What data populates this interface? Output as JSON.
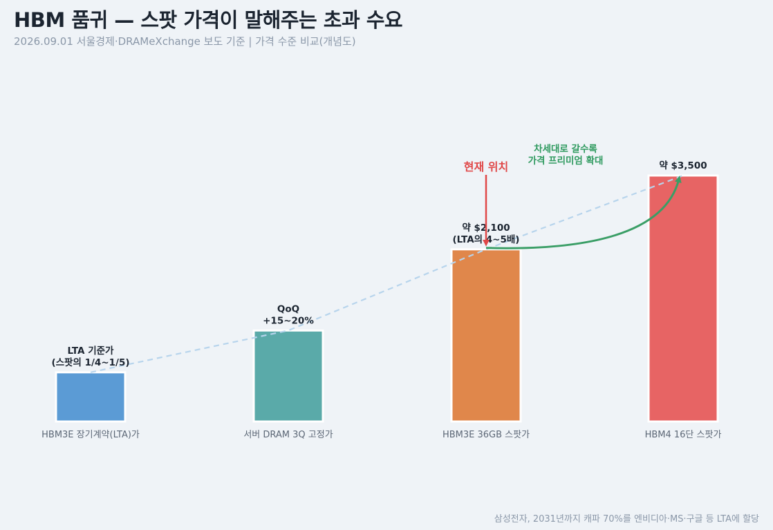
{
  "header": {
    "title": "HBM 품귀 — 스팟 가격이 말해주는 초과 수요",
    "subtitle": "2026.09.01 서울경제·DRAMeXchange 보도 기준  |  가격 수준 비교(개념도)"
  },
  "footnote": "삼성전자, 2031년까지 캐파 70%를 엔비디아·MS·구글 등 LTA에 할당",
  "chart_data": {
    "type": "bar",
    "categories": [
      "HBM3E 장기계약(LTA)가",
      "서버 DRAM 3Q 고정가",
      "HBM3E 36GB 스팟가",
      "HBM4 16단 스팟가"
    ],
    "values": [
      0.2,
      0.37,
      0.7,
      1.0
    ],
    "value_labels": [
      [
        "LTA 기준가",
        "(스팟의 1/4~1/5)"
      ],
      [
        "QoQ",
        "+15~20%"
      ],
      [
        "약 $2,100",
        "(LTA의 4~5배)"
      ],
      [
        "약 $3,500"
      ]
    ],
    "colors": [
      "#5b9bd5",
      "#5aaaa9",
      "#e0874b",
      "#e76464"
    ],
    "trend_line_color": "#b7d4ec",
    "annotations": {
      "current": "현재 위치",
      "current_color": "#e04848",
      "trend": [
        "차세대로 갈수록",
        "가격 프리미엄 확대"
      ],
      "trend_color": "#3a9e66"
    },
    "grid": false,
    "legend": "none"
  }
}
